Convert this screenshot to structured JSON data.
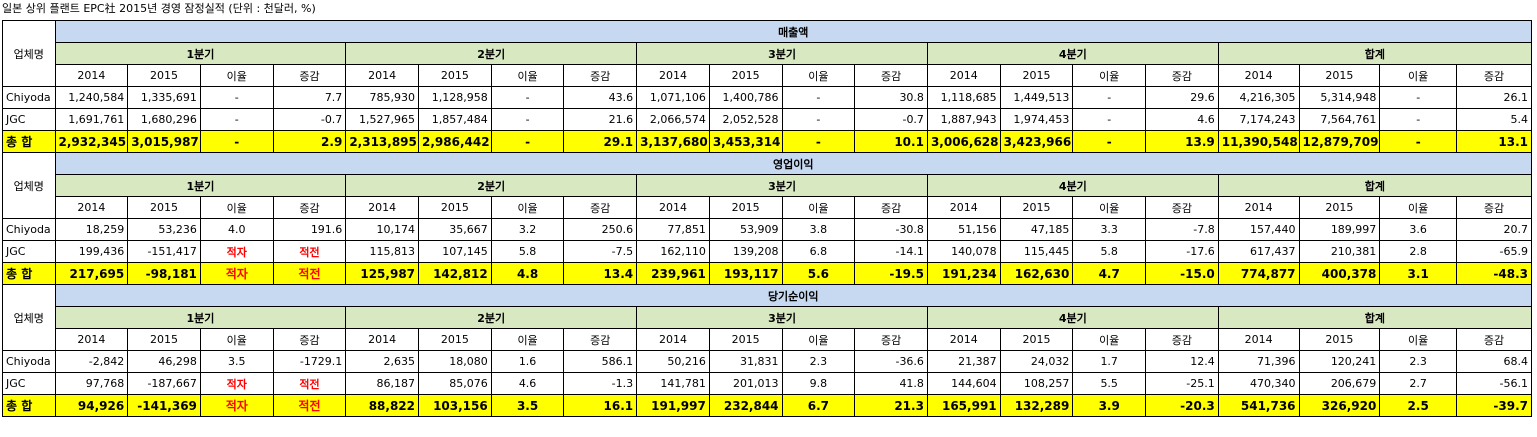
{
  "title": "일본 상위 플랜트 EPC社 2015년 경영 잠정실적    (단위 : 천달러, %)",
  "company_header": "업체명",
  "quarters": [
    "1분기",
    "2분기",
    "3분기",
    "4분기",
    "합계"
  ],
  "subheaders": [
    "2014",
    "2015",
    "이율",
    "증감"
  ],
  "sections": [
    {
      "name": "매출액",
      "rows": [
        {
          "company": "Chiyoda",
          "values": [
            "1,240,584",
            "1,335,691",
            "-",
            "7.7",
            "785,930",
            "1,128,958",
            "-",
            "43.6",
            "1,071,106",
            "1,400,786",
            "-",
            "30.8",
            "1,118,685",
            "1,449,513",
            "-",
            "29.6",
            "4,216,305",
            "5,314,948",
            "-",
            "26.1"
          ]
        },
        {
          "company": "JGC",
          "values": [
            "1,691,761",
            "1,680,296",
            "-",
            "-0.7",
            "1,527,965",
            "1,857,484",
            "-",
            "21.6",
            "2,066,574",
            "2,052,528",
            "-",
            "-0.7",
            "1,887,943",
            "1,974,453",
            "-",
            "4.6",
            "7,174,243",
            "7,564,761",
            "-",
            "5.4"
          ]
        },
        {
          "company": "총  합",
          "values": [
            "2,932,345",
            "3,015,987",
            "-",
            "2.9",
            "2,313,895",
            "2,986,442",
            "-",
            "29.1",
            "3,137,680",
            "3,453,314",
            "-",
            "10.1",
            "3,006,628",
            "3,423,966",
            "-",
            "13.9",
            "11,390,548",
            "12,879,709",
            "-",
            "13.1"
          ]
        }
      ]
    },
    {
      "name": "영업이익",
      "rows": [
        {
          "company": "Chiyoda",
          "values": [
            "18,259",
            "53,236",
            "4.0",
            "191.6",
            "10,174",
            "35,667",
            "3.2",
            "250.6",
            "77,851",
            "53,909",
            "3.8",
            "-30.8",
            "51,156",
            "47,185",
            "3.3",
            "-7.8",
            "157,440",
            "189,997",
            "3.6",
            "20.7"
          ]
        },
        {
          "company": "JGC",
          "values": [
            "199,436",
            "-151,417",
            "적자",
            "적전",
            "115,813",
            "107,145",
            "5.8",
            "-7.5",
            "162,110",
            "139,208",
            "6.8",
            "-14.1",
            "140,078",
            "115,445",
            "5.8",
            "-17.6",
            "617,437",
            "210,381",
            "2.8",
            "-65.9"
          ]
        },
        {
          "company": "총  합",
          "values": [
            "217,695",
            "-98,181",
            "적자",
            "적전",
            "125,987",
            "142,812",
            "4.8",
            "13.4",
            "239,961",
            "193,117",
            "5.6",
            "-19.5",
            "191,234",
            "162,630",
            "4.7",
            "-15.0",
            "774,877",
            "400,378",
            "3.1",
            "-48.3"
          ]
        }
      ]
    },
    {
      "name": "당기순이익",
      "rows": [
        {
          "company": "Chiyoda",
          "values": [
            "-2,842",
            "46,298",
            "3.5",
            "-1729.1",
            "2,635",
            "18,080",
            "1.6",
            "586.1",
            "50,216",
            "31,831",
            "2.3",
            "-36.6",
            "21,387",
            "24,032",
            "1.7",
            "12.4",
            "71,396",
            "120,241",
            "2.3",
            "68.4"
          ]
        },
        {
          "company": "JGC",
          "values": [
            "97,768",
            "-187,667",
            "적자",
            "적전",
            "86,187",
            "85,076",
            "4.6",
            "-1.3",
            "141,781",
            "201,013",
            "9.8",
            "41.8",
            "144,604",
            "108,257",
            "5.5",
            "-25.1",
            "470,340",
            "206,679",
            "2.7",
            "-56.1"
          ]
        },
        {
          "company": "총  합",
          "values": [
            "94,926",
            "-141,369",
            "적자",
            "적전",
            "88,822",
            "103,156",
            "3.5",
            "16.1",
            "191,997",
            "232,844",
            "6.7",
            "21.3",
            "165,991",
            "132,289",
            "3.9",
            "-20.3",
            "541,736",
            "326,920",
            "2.5",
            "-39.7"
          ]
        }
      ]
    }
  ]
}
